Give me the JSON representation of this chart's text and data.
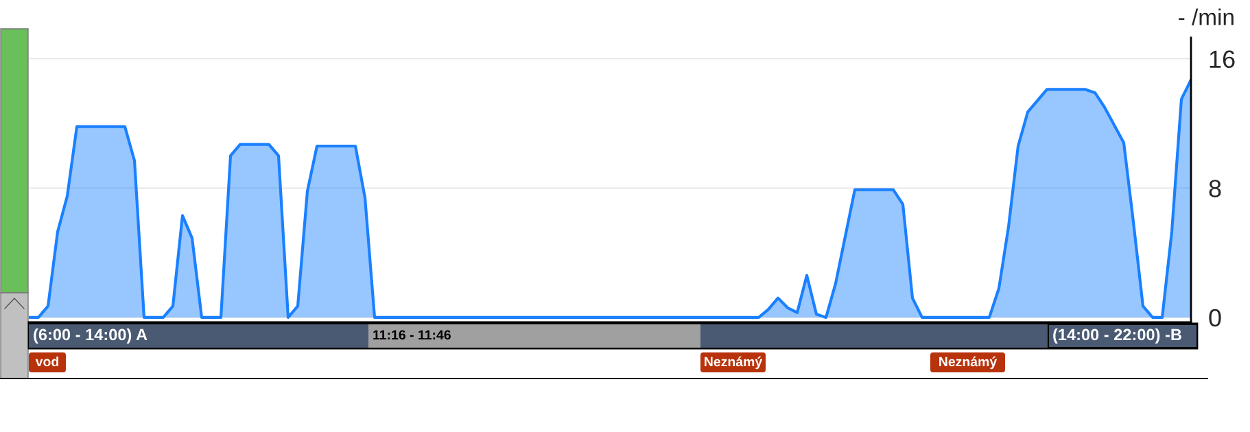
{
  "chart_data": {
    "type": "area",
    "ylabel": "- /min",
    "categories": [
      null,
      null,
      null,
      null,
      null,
      null,
      null,
      null,
      null,
      null,
      null,
      null,
      null,
      null,
      null,
      null,
      null,
      null,
      null,
      null,
      null,
      null,
      null,
      null,
      null,
      null,
      null,
      null,
      null,
      null,
      null,
      null,
      null,
      null,
      null,
      null,
      null,
      null,
      null,
      null,
      null,
      null,
      null,
      null,
      null,
      null,
      null,
      null,
      null,
      null,
      null,
      null,
      null,
      null,
      null,
      null,
      null,
      null,
      null,
      null,
      null,
      null,
      null,
      null,
      null,
      null,
      null,
      null,
      null,
      null,
      null,
      null,
      null,
      null,
      null,
      null,
      null,
      null,
      null,
      null,
      null,
      null,
      null,
      null,
      null,
      null,
      null,
      null,
      null,
      null,
      null,
      null,
      null,
      null,
      null,
      null,
      null,
      null,
      null,
      null,
      null,
      null,
      null,
      null,
      null,
      null,
      null,
      null,
      null,
      null,
      null,
      null,
      null,
      null,
      null,
      null,
      null,
      null,
      null,
      null,
      null,
      null
    ],
    "series": [
      {
        "color": "#1a80ff",
        "values": [
          0,
          0,
          0.7,
          5.3,
          7.5,
          11.8,
          11.8,
          11.8,
          11.8,
          11.8,
          11.8,
          9.7,
          0,
          0,
          0,
          0.7,
          6.3,
          4.9,
          0,
          0,
          0,
          10.0,
          10.7,
          10.7,
          10.7,
          10.7,
          10.0,
          0,
          0.7,
          7.8,
          10.6,
          10.6,
          10.6,
          10.6,
          10.6,
          7.4,
          0,
          0,
          0,
          0,
          0,
          0,
          0,
          0,
          0,
          0,
          0,
          0,
          0,
          0,
          0,
          0,
          0,
          0,
          0,
          0,
          0,
          0,
          0,
          0,
          0,
          0,
          0,
          0,
          0,
          0,
          0,
          0,
          0,
          0,
          0,
          0,
          0,
          0,
          0,
          0,
          0,
          0.5,
          1.2,
          0.6,
          0.3,
          2.6,
          0.2,
          0,
          2.1,
          5.0,
          7.9,
          7.9,
          7.9,
          7.9,
          7.9,
          7.0,
          1.2,
          0,
          0,
          0,
          0,
          0,
          0,
          0,
          0,
          1.8,
          5.6,
          10.6,
          12.7,
          13.4,
          14.1,
          14.1,
          14.1,
          14.1,
          14.1,
          13.9,
          13.0,
          11.9,
          10.8,
          5.9,
          0.7,
          0,
          0,
          5.3,
          13.5,
          14.7
        ]
      }
    ],
    "ylim": [
      -0.3,
      17.3
    ],
    "yticks": [
      0,
      8,
      16
    ],
    "grid": "y",
    "tick_labels": "y",
    "annotations": [
      "(6:00 - 14:00) A",
      "11:16 - 11:46",
      "(14:00 - 22:00) -B",
      "vod",
      "Neznámý",
      "Neznámý"
    ]
  }
}
